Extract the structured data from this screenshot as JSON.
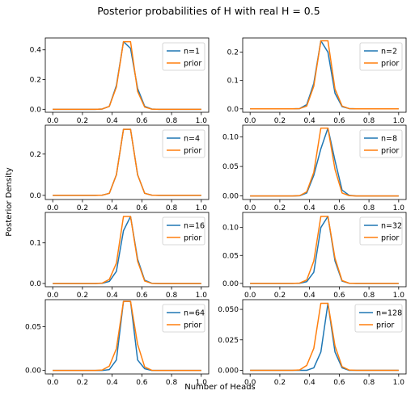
{
  "figure": {
    "title": "Posterior probabilities of H with real H = 0.5",
    "xlabel": "Number of Heads",
    "ylabel": "Posterior Density"
  },
  "colors": {
    "posterior": "#1f77b4",
    "prior": "#ff7f0e"
  },
  "chart_data": {
    "type": "line",
    "x": [
      0.0,
      0.0476,
      0.0952,
      0.1429,
      0.1905,
      0.2381,
      0.2857,
      0.3333,
      0.381,
      0.4286,
      0.4762,
      0.5238,
      0.5714,
      0.619,
      0.6667,
      0.7143,
      0.7619,
      0.8095,
      0.8571,
      0.9048,
      0.9524,
      1.0
    ],
    "xticks": [
      "0.0",
      "0.2",
      "0.4",
      "0.6",
      "0.8",
      "1.0"
    ],
    "xlim": [
      -0.05,
      1.05
    ],
    "subplots": [
      {
        "legend": [
          "n=1",
          "prior"
        ],
        "legend_loc": "upper right",
        "ylim": [
          -0.02,
          0.48
        ],
        "yticks": [
          0.0,
          0.2,
          0.4
        ],
        "ytick_labels": [
          "0.0",
          "0.2",
          "0.4"
        ],
        "series": [
          {
            "name": "n=1",
            "values": [
              0,
              0,
              0,
              0,
              0,
              0,
              0,
              0.002,
              0.02,
              0.16,
              0.455,
              0.41,
              0.14,
              0.02,
              0.002,
              0,
              0,
              0,
              0,
              0,
              0,
              0
            ]
          },
          {
            "name": "prior",
            "values": [
              0,
              0,
              0,
              0,
              0,
              0,
              0,
              0.002,
              0.02,
              0.15,
              0.455,
              0.455,
              0.12,
              0.015,
              0.001,
              0,
              0,
              0,
              0,
              0,
              0,
              0
            ]
          }
        ]
      },
      {
        "legend": [
          "n=2",
          "prior"
        ],
        "legend_loc": "upper right",
        "ylim": [
          -0.012,
          0.25
        ],
        "yticks": [
          0.0,
          0.1,
          0.2
        ],
        "ytick_labels": [
          "0.0",
          "0.1",
          "0.2"
        ],
        "series": [
          {
            "name": "n=2",
            "values": [
              0,
              0,
              0,
              0,
              0,
              0,
              0,
              0.001,
              0.015,
              0.09,
              0.24,
              0.2,
              0.055,
              0.008,
              0.001,
              0,
              0,
              0,
              0,
              0,
              0,
              0
            ]
          },
          {
            "name": "prior",
            "values": [
              0,
              0,
              0,
              0,
              0,
              0,
              0,
              0.001,
              0.01,
              0.08,
              0.24,
              0.24,
              0.07,
              0.01,
              0.001,
              0,
              0,
              0,
              0,
              0,
              0,
              0
            ]
          }
        ]
      },
      {
        "legend": [
          "n=4",
          "prior"
        ],
        "legend_loc": "upper right",
        "ylim": [
          -0.02,
          0.34
        ],
        "yticks": [
          0.0,
          0.2
        ],
        "ytick_labels": [
          "0.0",
          "0.2"
        ],
        "series": [
          {
            "name": "n=4",
            "values": [
              0,
              0,
              0,
              0,
              0,
              0,
              0,
              0.001,
              0.01,
              0.1,
              0.32,
              0.32,
              0.1,
              0.01,
              0.001,
              0,
              0,
              0,
              0,
              0,
              0,
              0
            ]
          },
          {
            "name": "prior",
            "values": [
              0,
              0,
              0,
              0,
              0,
              0,
              0,
              0.001,
              0.01,
              0.1,
              0.32,
              0.32,
              0.1,
              0.01,
              0.001,
              0,
              0,
              0,
              0,
              0,
              0,
              0
            ]
          }
        ]
      },
      {
        "legend": [
          "n=8",
          "prior"
        ],
        "legend_loc": "upper right",
        "ylim": [
          -0.006,
          0.12
        ],
        "yticks": [
          0.0,
          0.05,
          0.1
        ],
        "ytick_labels": [
          "0.00",
          "0.05",
          "0.10"
        ],
        "series": [
          {
            "name": "n=8",
            "values": [
              0,
              0,
              0,
              0,
              0,
              0,
              0,
              0.0003,
              0.005,
              0.035,
              0.08,
              0.115,
              0.06,
              0.01,
              0.001,
              0,
              0,
              0,
              0,
              0,
              0,
              0
            ]
          },
          {
            "name": "prior",
            "values": [
              0,
              0,
              0,
              0,
              0,
              0,
              0,
              0.0005,
              0.007,
              0.04,
              0.115,
              0.115,
              0.045,
              0.005,
              0.0005,
              0,
              0,
              0,
              0,
              0,
              0,
              0
            ]
          }
        ]
      },
      {
        "legend": [
          "n=16",
          "prior"
        ],
        "legend_loc": "upper right",
        "ylim": [
          -0.008,
          0.175
        ],
        "yticks": [
          0.0,
          0.1
        ],
        "ytick_labels": [
          "0.0",
          "0.1"
        ],
        "series": [
          {
            "name": "n=16",
            "values": [
              0,
              0,
              0,
              0,
              0,
              0,
              0,
              0.0005,
              0.005,
              0.03,
              0.13,
              0.165,
              0.06,
              0.008,
              0.0005,
              0,
              0,
              0,
              0,
              0,
              0,
              0
            ]
          },
          {
            "name": "prior",
            "values": [
              0,
              0,
              0,
              0,
              0,
              0,
              0,
              0.001,
              0.01,
              0.05,
              0.165,
              0.165,
              0.055,
              0.006,
              0.0003,
              0,
              0,
              0,
              0,
              0,
              0,
              0
            ]
          }
        ]
      },
      {
        "legend": [
          "n=32",
          "prior"
        ],
        "legend_loc": "upper right",
        "ylim": [
          -0.006,
          0.127
        ],
        "yticks": [
          0.0,
          0.05,
          0.1
        ],
        "ytick_labels": [
          "0.00",
          "0.05",
          "0.10"
        ],
        "series": [
          {
            "name": "n=32",
            "values": [
              0,
              0,
              0,
              0,
              0,
              0,
              0,
              0.0002,
              0.003,
              0.02,
              0.1,
              0.12,
              0.04,
              0.004,
              0.0002,
              0,
              0,
              0,
              0,
              0,
              0,
              0
            ]
          },
          {
            "name": "prior",
            "values": [
              0,
              0,
              0,
              0,
              0,
              0,
              0,
              0.0005,
              0.006,
              0.04,
              0.12,
              0.12,
              0.045,
              0.005,
              0.0003,
              0,
              0,
              0,
              0,
              0,
              0,
              0
            ]
          }
        ]
      },
      {
        "legend": [
          "n=64",
          "prior"
        ],
        "legend_loc": "upper right",
        "ylim": [
          -0.004,
          0.081
        ],
        "yticks": [
          0.0,
          0.05
        ],
        "ytick_labels": [
          "0.00",
          "0.05"
        ],
        "series": [
          {
            "name": "n=64",
            "values": [
              0,
              0,
              0,
              0,
              0,
              0,
              0,
              0,
              0.001,
              0.012,
              0.079,
              0.079,
              0.012,
              0.002,
              0,
              0,
              0,
              0,
              0,
              0,
              0,
              0
            ]
          },
          {
            "name": "prior",
            "values": [
              0,
              0,
              0,
              0,
              0,
              0,
              0,
              0.0005,
              0.005,
              0.025,
              0.079,
              0.079,
              0.03,
              0.004,
              0.0002,
              0,
              0,
              0,
              0,
              0,
              0,
              0
            ]
          }
        ]
      },
      {
        "legend": [
          "n=128",
          "prior"
        ],
        "legend_loc": "upper right",
        "ylim": [
          -0.003,
          0.058
        ],
        "yticks": [
          0.0,
          0.025,
          0.05
        ],
        "ytick_labels": [
          "0.000",
          "0.025",
          "0.050"
        ],
        "series": [
          {
            "name": "n=128",
            "values": [
              0,
              0,
              0,
              0,
              0,
              0,
              0,
              0,
              0,
              0.002,
              0.015,
              0.055,
              0.015,
              0.002,
              0,
              0,
              0,
              0,
              0,
              0,
              0,
              0
            ]
          },
          {
            "name": "prior",
            "values": [
              0,
              0,
              0,
              0,
              0,
              0,
              0,
              0.0003,
              0.004,
              0.018,
              0.055,
              0.055,
              0.02,
              0.003,
              0.0002,
              0,
              0,
              0,
              0,
              0,
              0,
              0
            ]
          }
        ]
      }
    ]
  }
}
